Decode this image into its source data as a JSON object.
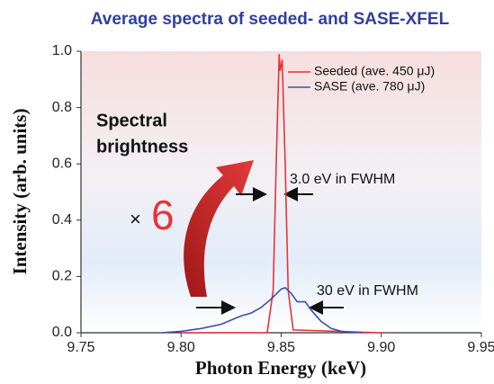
{
  "chart_data": {
    "type": "line",
    "title": "Average spectra of seeded- and SASE-XFEL",
    "x_label": "Photon Energy (keV)",
    "y_label": "Intensity (arb. units)",
    "xlim": [
      9.75,
      9.95
    ],
    "ylim": [
      0,
      1.0
    ],
    "xticks": [
      9.75,
      {
        "value": 9.8,
        "label": "9.80"
      },
      9.85,
      {
        "value": 9.9,
        "label": "9.90"
      },
      9.95
    ],
    "yticks": [
      {
        "value": 0,
        "label": "0.0"
      },
      0.2,
      0.4,
      0.6,
      0.8,
      {
        "value": 1.0,
        "label": "1.0"
      }
    ],
    "legend": "upper right",
    "series": [
      {
        "name": "Seeded (ave. 450 μJ)",
        "color": "#e8333a",
        "x": [
          9.8,
          9.843,
          9.846,
          9.8475,
          9.849,
          9.8495,
          9.8505,
          9.852,
          9.8535,
          9.856,
          9.9
        ],
        "values": [
          0,
          0,
          0.15,
          0.6,
          0.99,
          0.93,
          0.97,
          0.6,
          0.15,
          0.01,
          0
        ]
      },
      {
        "name": "SASE (ave. 780 μJ)",
        "color": "#3d4fa8",
        "x": [
          9.79,
          9.8,
          9.81,
          9.82,
          9.83,
          9.835,
          9.84,
          9.845,
          9.85,
          9.852,
          9.855,
          9.858,
          9.862,
          9.865,
          9.87,
          9.875,
          9.88,
          9.89
        ],
        "values": [
          0,
          0.005,
          0.015,
          0.03,
          0.06,
          0.07,
          0.09,
          0.12,
          0.155,
          0.16,
          0.14,
          0.11,
          0.11,
          0.08,
          0.04,
          0.015,
          0.005,
          0
        ]
      }
    ],
    "annotations": [
      "Spectral",
      "brightness",
      "×",
      "6",
      "3.0 eV in FWHM",
      "30 eV in FWHM"
    ]
  }
}
